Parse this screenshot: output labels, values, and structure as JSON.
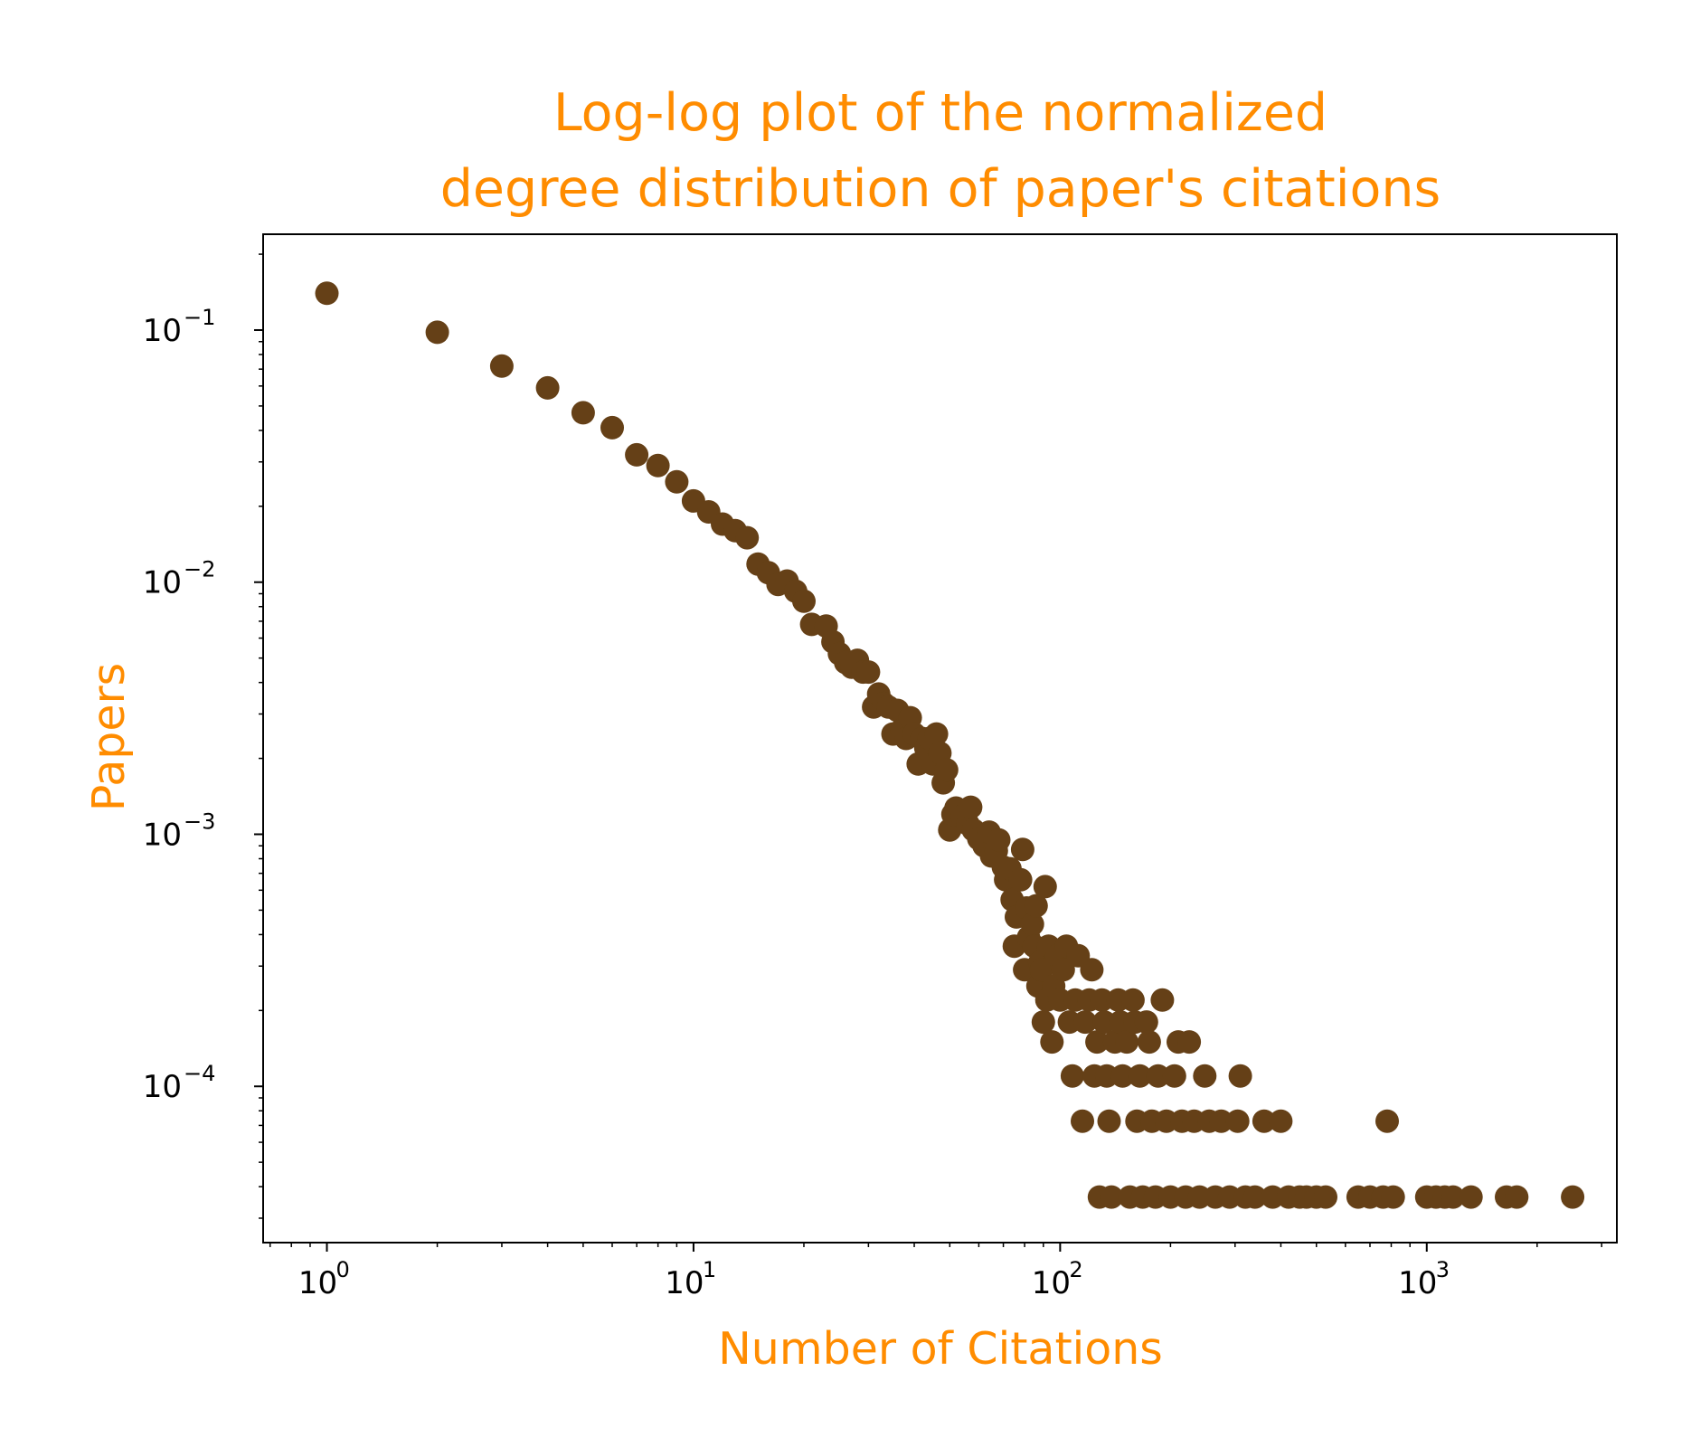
{
  "chart_data": {
    "type": "scatter",
    "title_lines": [
      "Log-log plot of the normalized",
      "degree distribution of paper's citations"
    ],
    "xlabel": "Number of Citations",
    "ylabel": "Papers",
    "x_scale": "log",
    "y_scale": "log",
    "xlim": [
      0.67,
      3300
    ],
    "ylim": [
      2.4e-05,
      0.24
    ],
    "x_ticks": [
      {
        "value": 1,
        "base": "10",
        "exp": "0"
      },
      {
        "value": 10,
        "base": "10",
        "exp": "1"
      },
      {
        "value": 100,
        "base": "10",
        "exp": "2"
      },
      {
        "value": 1000,
        "base": "10",
        "exp": "3"
      }
    ],
    "y_ticks": [
      {
        "value": 0.1,
        "base": "10",
        "exp": "−1"
      },
      {
        "value": 0.01,
        "base": "10",
        "exp": "−2"
      },
      {
        "value": 0.001,
        "base": "10",
        "exp": "−3"
      },
      {
        "value": 0.0001,
        "base": "10",
        "exp": "−4"
      }
    ],
    "grid": false,
    "legend": "none",
    "marker_color": "#654017",
    "series": [
      {
        "points": [
          [
            1,
            0.14
          ],
          [
            2,
            0.098
          ],
          [
            3,
            0.072
          ],
          [
            4,
            0.059
          ],
          [
            5,
            0.047
          ],
          [
            6,
            0.041
          ],
          [
            7,
            0.032
          ],
          [
            8,
            0.029
          ],
          [
            9,
            0.025
          ],
          [
            10,
            0.021
          ],
          [
            11,
            0.019
          ],
          [
            12,
            0.017
          ],
          [
            13,
            0.016
          ],
          [
            14,
            0.015
          ],
          [
            15,
            0.0118
          ],
          [
            16,
            0.0109
          ],
          [
            17,
            0.0098
          ],
          [
            18,
            0.0101
          ],
          [
            19,
            0.0092
          ],
          [
            20,
            0.0084
          ],
          [
            21,
            0.0068
          ],
          [
            23,
            0.0067
          ],
          [
            24,
            0.0058
          ],
          [
            25,
            0.0052
          ],
          [
            26,
            0.0048
          ],
          [
            27,
            0.0046
          ],
          [
            28,
            0.0049
          ],
          [
            29,
            0.0044
          ],
          [
            30,
            0.0044
          ],
          [
            31,
            0.0032
          ],
          [
            32,
            0.0036
          ],
          [
            33,
            0.0033
          ],
          [
            34,
            0.0032
          ],
          [
            35,
            0.0025
          ],
          [
            36,
            0.0031
          ],
          [
            37,
            0.0026
          ],
          [
            38,
            0.0024
          ],
          [
            39,
            0.0029
          ],
          [
            40,
            0.0025
          ],
          [
            41,
            0.0019
          ],
          [
            42,
            0.0024
          ],
          [
            43,
            0.0022
          ],
          [
            44,
            0.0024
          ],
          [
            45,
            0.0019
          ],
          [
            46,
            0.0025
          ],
          [
            47,
            0.0021
          ],
          [
            48,
            0.0016
          ],
          [
            49,
            0.0018
          ],
          [
            50,
            0.00104
          ],
          [
            51,
            0.0012
          ],
          [
            52,
            0.00127
          ],
          [
            54,
            0.00118
          ],
          [
            56,
            0.0011
          ],
          [
            57,
            0.00128
          ],
          [
            58,
            0.00104
          ],
          [
            60,
            0.00096
          ],
          [
            62,
            0.0009
          ],
          [
            64,
            0.00102
          ],
          [
            65,
            0.00082
          ],
          [
            67,
            0.00086
          ],
          [
            68,
            0.00095
          ],
          [
            70,
            0.00074
          ],
          [
            71,
            0.00066
          ],
          [
            73,
            0.00073
          ],
          [
            74,
            0.00055
          ],
          [
            75,
            0.00036
          ],
          [
            76,
            0.00047
          ],
          [
            78,
            0.00066
          ],
          [
            79,
            0.00087
          ],
          [
            80,
            0.00029
          ],
          [
            81,
            0.00051
          ],
          [
            82,
            0.00039
          ],
          [
            84,
            0.00044
          ],
          [
            85,
            0.00036
          ],
          [
            86,
            0.00052
          ],
          [
            87,
            0.00025
          ],
          [
            88,
            0.00031
          ],
          [
            89,
            0.00029
          ],
          [
            90,
            0.00018
          ],
          [
            91,
            0.00062
          ],
          [
            92,
            0.00022
          ],
          [
            93,
            0.00036
          ],
          [
            95,
            0.00015
          ],
          [
            96,
            0.00025
          ],
          [
            98,
            0.00033
          ],
          [
            100,
            0.00022
          ],
          [
            102,
            0.00029
          ],
          [
            104,
            0.00036
          ],
          [
            106,
            0.00018
          ],
          [
            108,
            0.00011
          ],
          [
            110,
            0.00022
          ],
          [
            112,
            0.00033
          ],
          [
            115,
            7.28e-05
          ],
          [
            117,
            0.00018
          ],
          [
            120,
            0.00022
          ],
          [
            122,
            0.00029
          ],
          [
            124,
            0.00011
          ],
          [
            126,
            0.00015
          ],
          [
            128,
            3.64e-05
          ],
          [
            130,
            0.00022
          ],
          [
            132,
            0.00018
          ],
          [
            134,
            0.00011
          ],
          [
            136,
            7.28e-05
          ],
          [
            138,
            3.64e-05
          ],
          [
            141,
            0.00015
          ],
          [
            144,
            0.00022
          ],
          [
            146,
            0.00018
          ],
          [
            148,
            0.00011
          ],
          [
            152,
            0.00015
          ],
          [
            155,
            3.64e-05
          ],
          [
            158,
            0.00022
          ],
          [
            160,
            0.00018
          ],
          [
            162,
            7.28e-05
          ],
          [
            165,
            0.00011
          ],
          [
            168,
            3.64e-05
          ],
          [
            172,
            0.00018
          ],
          [
            175,
            0.00015
          ],
          [
            178,
            7.28e-05
          ],
          [
            182,
            3.64e-05
          ],
          [
            185,
            0.00011
          ],
          [
            190,
            0.00022
          ],
          [
            195,
            7.28e-05
          ],
          [
            200,
            3.64e-05
          ],
          [
            205,
            0.00011
          ],
          [
            210,
            0.00015
          ],
          [
            215,
            7.28e-05
          ],
          [
            220,
            3.64e-05
          ],
          [
            225,
            0.00015
          ],
          [
            232,
            7.28e-05
          ],
          [
            240,
            3.64e-05
          ],
          [
            248,
            0.00011
          ],
          [
            255,
            7.28e-05
          ],
          [
            265,
            3.64e-05
          ],
          [
            275,
            7.28e-05
          ],
          [
            290,
            3.64e-05
          ],
          [
            305,
            7.28e-05
          ],
          [
            310,
            0.00011
          ],
          [
            320,
            3.64e-05
          ],
          [
            340,
            3.64e-05
          ],
          [
            360,
            7.28e-05
          ],
          [
            380,
            3.64e-05
          ],
          [
            400,
            7.28e-05
          ],
          [
            420,
            3.64e-05
          ],
          [
            450,
            3.64e-05
          ],
          [
            470,
            3.64e-05
          ],
          [
            500,
            3.64e-05
          ],
          [
            530,
            3.64e-05
          ],
          [
            650,
            3.64e-05
          ],
          [
            700,
            3.64e-05
          ],
          [
            760,
            3.64e-05
          ],
          [
            780,
            7.28e-05
          ],
          [
            810,
            3.64e-05
          ],
          [
            1000,
            3.64e-05
          ],
          [
            1060,
            3.64e-05
          ],
          [
            1120,
            3.64e-05
          ],
          [
            1180,
            3.64e-05
          ],
          [
            1320,
            3.64e-05
          ],
          [
            1650,
            3.64e-05
          ],
          [
            1760,
            3.64e-05
          ],
          [
            2500,
            3.64e-05
          ]
        ]
      }
    ]
  }
}
